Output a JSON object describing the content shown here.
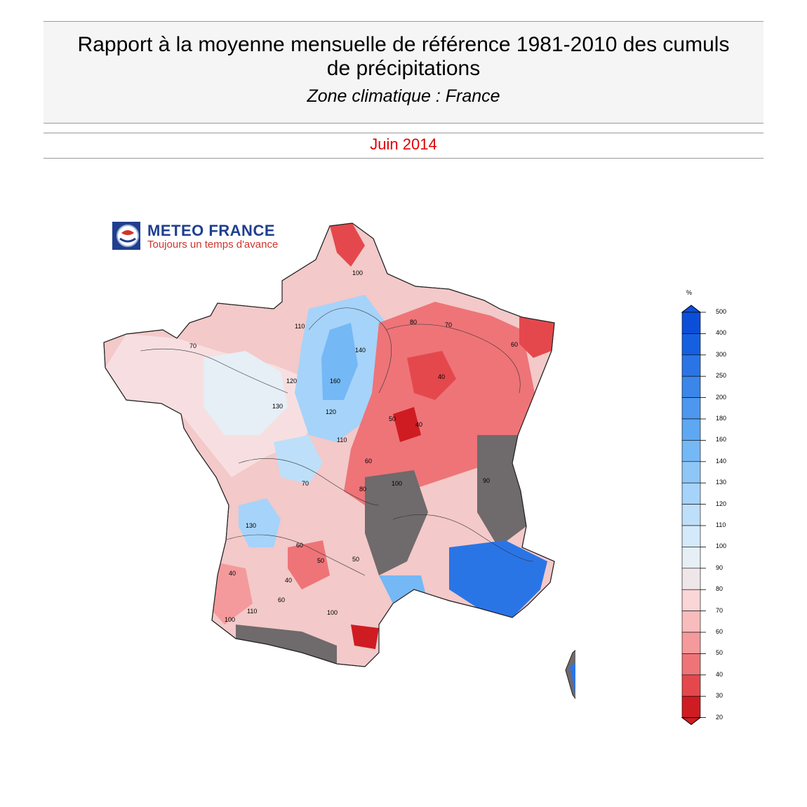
{
  "header": {
    "title_line1": "Rapport à la moyenne mensuelle de référence 1981-2010 des cumuls",
    "title_line2": "de précipitations",
    "subtitle": "Zone climatique : France",
    "month": "Juin 2014"
  },
  "logo": {
    "name": "METEO FRANCE",
    "tagline": "Toujours un temps d'avance"
  },
  "legend": {
    "unit": "%",
    "ticks": [
      "500",
      "400",
      "300",
      "250",
      "200",
      "180",
      "160",
      "140",
      "130",
      "120",
      "110",
      "100",
      "90",
      "80",
      "70",
      "60",
      "50",
      "40",
      "30",
      "20"
    ],
    "colors": [
      "#0b4fd8",
      "#1560e0",
      "#2a75e6",
      "#3a86ea",
      "#4d97ee",
      "#5ea7f2",
      "#74b8f5",
      "#8ec6f7",
      "#a6d3f9",
      "#bedff9",
      "#d4e9f9",
      "#e6eef6",
      "#efe6ea",
      "#fad6d6",
      "#f8bcbd",
      "#f49a9c",
      "#ee7478",
      "#e4484c",
      "#cf1c22"
    ]
  },
  "map": {
    "contour_labels": [
      "100",
      "70",
      "110",
      "120",
      "130",
      "140",
      "160",
      "80",
      "70",
      "60",
      "40",
      "50",
      "40",
      "70",
      "130",
      "60",
      "50",
      "40",
      "120",
      "110",
      "100",
      "90",
      "60",
      "50",
      "40",
      "100",
      "110",
      "60",
      "80",
      "100"
    ]
  },
  "colors": {
    "month_red": "#e00000",
    "logo_blue": "#1f3f8f",
    "logo_red": "#d0342c"
  }
}
